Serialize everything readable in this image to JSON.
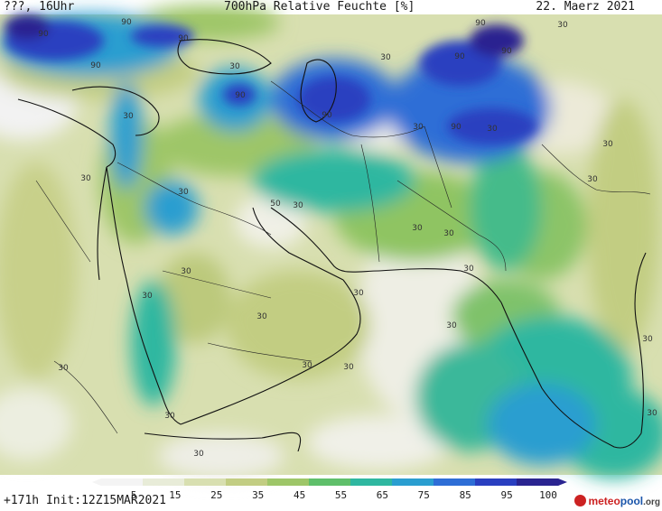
{
  "header": {
    "left": "???, 16Uhr",
    "title": "700hPa Relative Feuchte [%]",
    "date": "22. Maerz 2021"
  },
  "footer": {
    "run": "+171h Init:12Z15MAR2021"
  },
  "colorbar": {
    "labels": [
      "5",
      "15",
      "25",
      "35",
      "45",
      "55",
      "65",
      "75",
      "85",
      "95",
      "100"
    ],
    "colors": [
      "#f4f4f4",
      "#e8ecd8",
      "#d8dfb0",
      "#c2cd82",
      "#9ec668",
      "#5fbf6a",
      "#2fb7a0",
      "#2a9ed0",
      "#2e6ed6",
      "#2a3fc0",
      "#2a2490"
    ]
  },
  "contour_labels": [
    "90",
    "90",
    "90",
    "90",
    "90",
    "90",
    "90",
    "90",
    "90",
    "90",
    "30",
    "30",
    "30",
    "30",
    "30",
    "30",
    "30",
    "30",
    "30",
    "30",
    "30",
    "30",
    "30",
    "30",
    "30",
    "30",
    "30",
    "30",
    "30",
    "30",
    "30",
    "30",
    "30",
    "50",
    "30",
    "30",
    "30"
  ],
  "logo": {
    "text_a": "meteo",
    "text_b": "pool",
    "text_c": ".org",
    "colors": {
      "a": "#cc2222",
      "b": "#1a55aa",
      "c": "#444444"
    }
  }
}
